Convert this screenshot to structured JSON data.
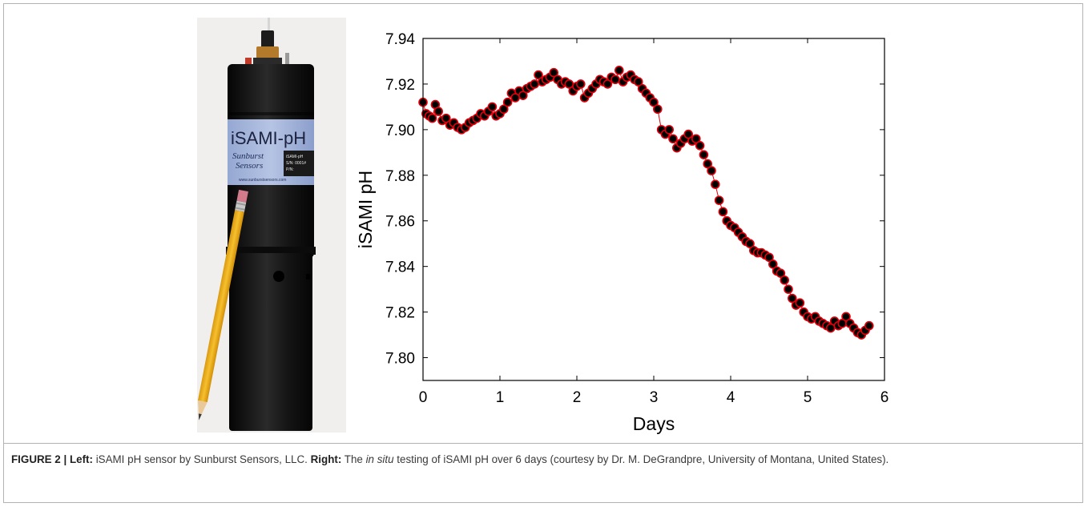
{
  "figure": {
    "caption": {
      "label": "FIGURE 2 | ",
      "left_heading": "Left:",
      "left_text": " iSAMI pH sensor by Sunburst Sensors, LLC. ",
      "right_heading": "Right:",
      "right_text_before": " The ",
      "right_text_italic": "in situ",
      "right_text_after": " testing of iSAMI pH over 6 days (courtesy by Dr. M. DeGrandpre, University of Montana, United States)."
    },
    "photo": {
      "label_title": "iSAMI-pH",
      "label_brand_line1": "Sunburst",
      "label_brand_line2": "Sensors",
      "label_info": [
        "iSAMI-pH",
        "S/N: 0001#",
        "P/N:"
      ],
      "label_url": "www.sunburstsensors.com",
      "colors": {
        "body": "#141414",
        "label": "#a9b9de",
        "pencil": "#f2b21a"
      }
    }
  },
  "chart_data": {
    "type": "scatter",
    "xlabel": "Days",
    "ylabel": "iSAMI pH",
    "xlim": [
      0,
      6
    ],
    "ylim": [
      7.79,
      7.94
    ],
    "xticks": [
      "0",
      "1",
      "2",
      "3",
      "4",
      "5",
      "6"
    ],
    "yticks": [
      "7.80",
      "7.82",
      "7.84",
      "7.86",
      "7.88",
      "7.90",
      "7.92",
      "7.94"
    ],
    "grid": false,
    "marker_fill": "#000000",
    "marker_edge": "#e0000b",
    "line_color": "#e0000b",
    "series": [
      {
        "x": [
          0.0,
          0.04,
          0.08,
          0.12,
          0.16,
          0.2,
          0.25,
          0.3,
          0.35,
          0.4,
          0.45,
          0.5,
          0.55,
          0.6,
          0.65,
          0.7,
          0.75,
          0.8,
          0.85,
          0.9,
          0.95,
          1.0,
          1.05,
          1.1,
          1.15,
          1.2,
          1.25,
          1.3,
          1.35,
          1.4,
          1.45,
          1.5,
          1.55,
          1.6,
          1.65,
          1.7,
          1.75,
          1.8,
          1.85,
          1.9,
          1.95,
          2.0,
          2.05,
          2.1,
          2.15,
          2.2,
          2.25,
          2.3,
          2.35,
          2.4,
          2.45,
          2.5,
          2.55,
          2.6,
          2.65,
          2.7,
          2.75,
          2.8,
          2.85,
          2.9,
          2.95,
          3.0,
          3.05,
          3.1,
          3.15,
          3.2,
          3.25,
          3.3,
          3.35,
          3.4,
          3.45,
          3.5,
          3.55,
          3.6,
          3.65,
          3.7,
          3.75,
          3.8,
          3.85,
          3.9,
          3.95,
          4.0,
          4.05,
          4.1,
          4.15,
          4.2,
          4.25,
          4.3,
          4.35,
          4.4,
          4.45,
          4.5,
          4.55,
          4.6,
          4.65,
          4.7,
          4.75,
          4.8,
          4.85,
          4.9,
          4.95,
          5.0,
          5.05,
          5.1,
          5.15,
          5.2,
          5.25,
          5.3,
          5.35,
          5.4,
          5.45,
          5.5,
          5.55,
          5.6,
          5.65,
          5.7,
          5.75,
          5.8
        ],
        "y": [
          7.912,
          7.907,
          7.906,
          7.905,
          7.911,
          7.908,
          7.904,
          7.905,
          7.902,
          7.903,
          7.901,
          7.9,
          7.901,
          7.903,
          7.904,
          7.905,
          7.907,
          7.906,
          7.908,
          7.91,
          7.906,
          7.907,
          7.909,
          7.912,
          7.916,
          7.914,
          7.917,
          7.915,
          7.918,
          7.919,
          7.92,
          7.924,
          7.921,
          7.922,
          7.923,
          7.925,
          7.922,
          7.92,
          7.921,
          7.92,
          7.917,
          7.919,
          7.92,
          7.914,
          7.916,
          7.918,
          7.92,
          7.922,
          7.921,
          7.92,
          7.923,
          7.922,
          7.926,
          7.921,
          7.923,
          7.924,
          7.922,
          7.921,
          7.918,
          7.916,
          7.914,
          7.912,
          7.909,
          7.9,
          7.898,
          7.9,
          7.896,
          7.892,
          7.894,
          7.896,
          7.898,
          7.895,
          7.896,
          7.893,
          7.889,
          7.885,
          7.882,
          7.876,
          7.869,
          7.864,
          7.86,
          7.858,
          7.857,
          7.855,
          7.853,
          7.851,
          7.85,
          7.847,
          7.846,
          7.846,
          7.845,
          7.844,
          7.841,
          7.838,
          7.837,
          7.834,
          7.83,
          7.826,
          7.823,
          7.824,
          7.82,
          7.818,
          7.817,
          7.818,
          7.816,
          7.815,
          7.814,
          7.813,
          7.816,
          7.814,
          7.815,
          7.818,
          7.815,
          7.813,
          7.811,
          7.81,
          7.812,
          7.814
        ]
      }
    ]
  }
}
